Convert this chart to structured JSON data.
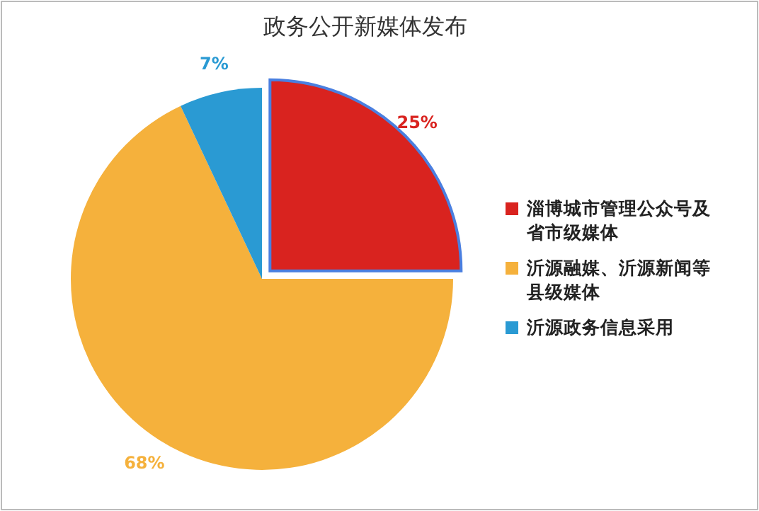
{
  "chart_data": {
    "type": "pie",
    "title": "政务公开新媒体发布",
    "categories": [
      "淄博城市管理公众号及省市级媒体",
      "沂源融媒、沂源新闻等县级媒体",
      "沂源政务信息采用"
    ],
    "values": [
      25,
      68,
      7
    ],
    "colors": [
      "#d9231f",
      "#f5b13c",
      "#2a9ad3"
    ],
    "value_labels": [
      "25%",
      "68%",
      "7%"
    ],
    "legend": "right"
  }
}
